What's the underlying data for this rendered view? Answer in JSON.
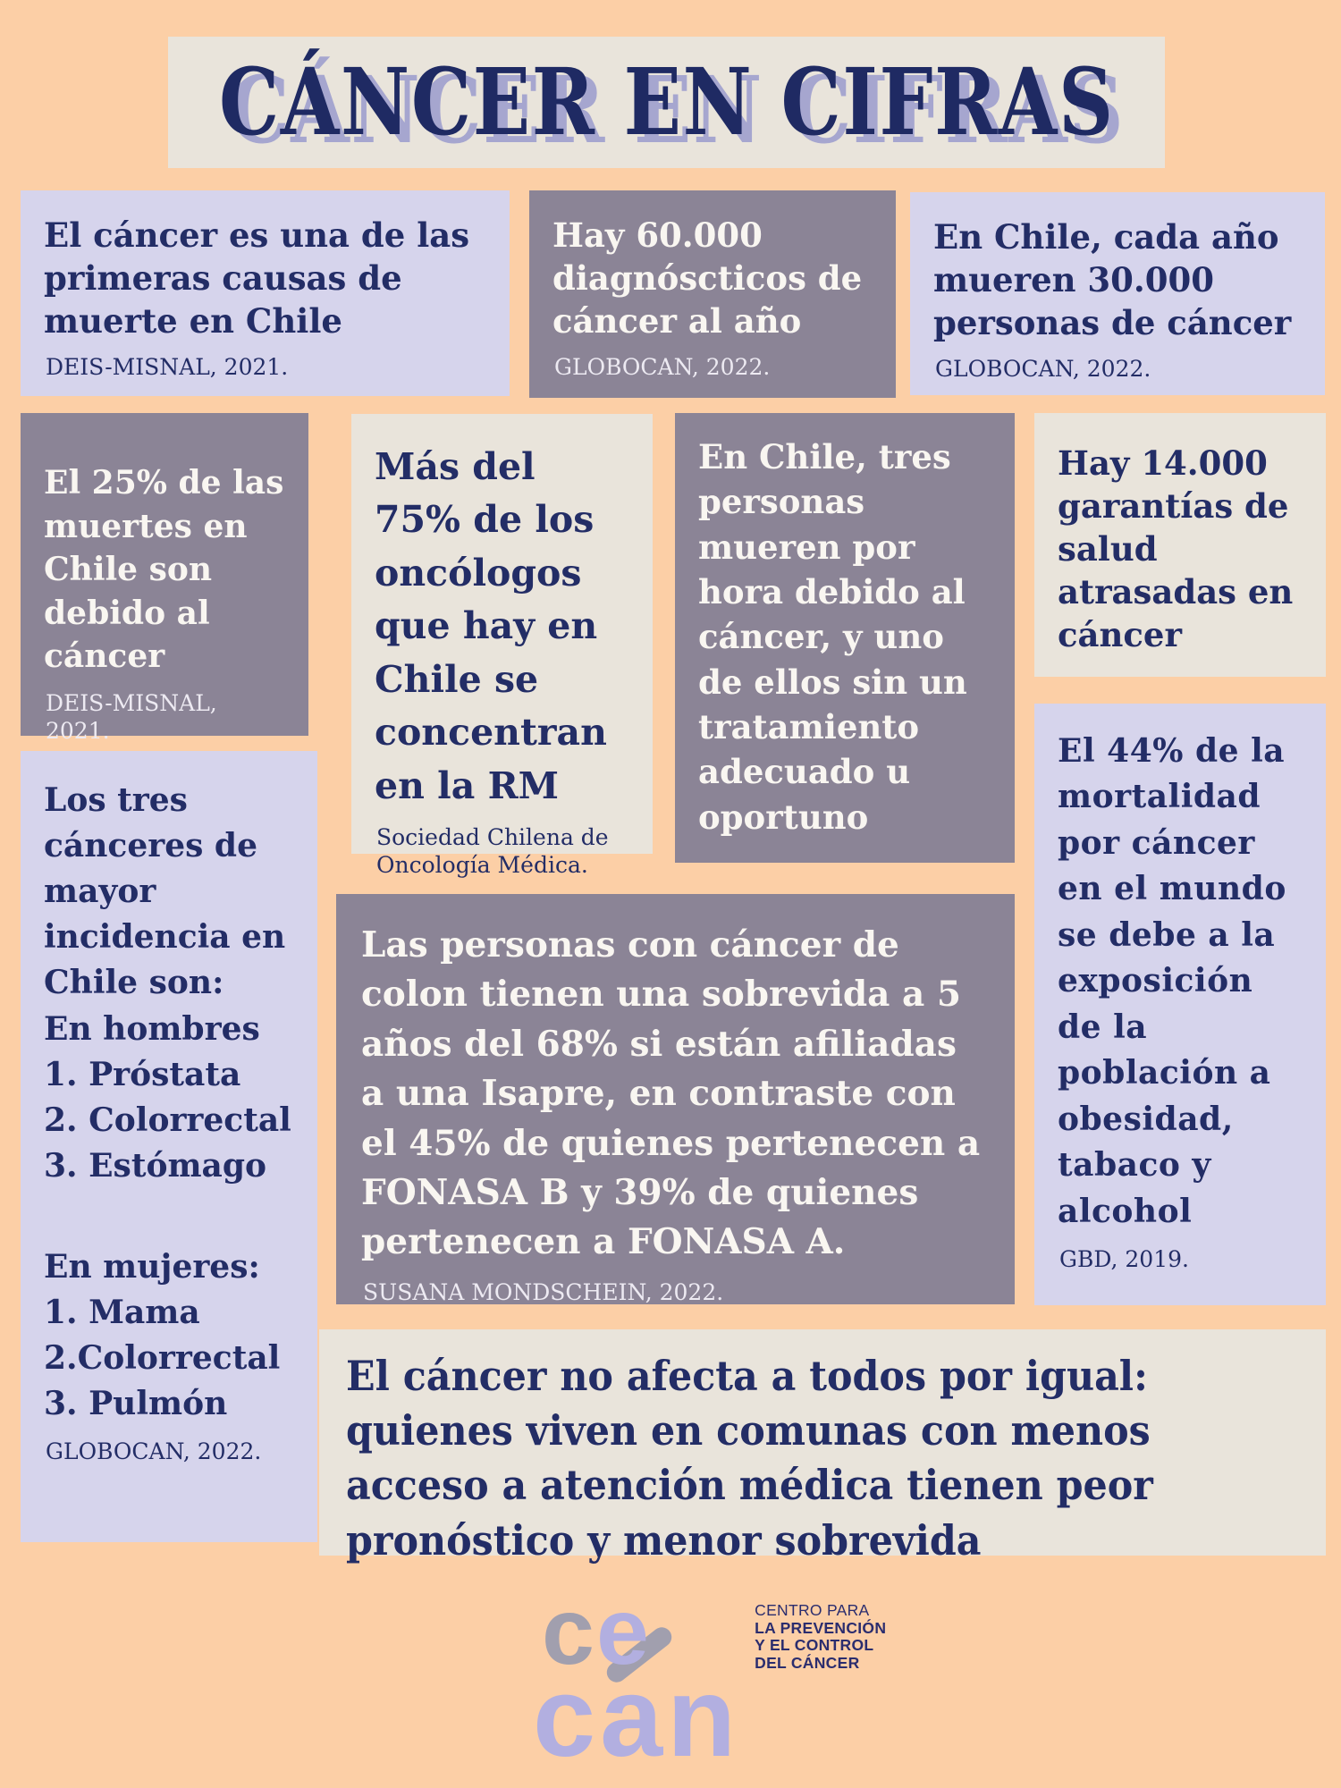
{
  "title": "CÁNCER EN CIFRAS",
  "cards": [
    {
      "name": "first-cause-of-death",
      "text": "El cáncer es una de las primeras causas de muerte en Chile",
      "source": "DEIS-MISNAL, 2021."
    },
    {
      "name": "annual-diagnoses",
      "text": "Hay 60.000 diagnóscticos de cáncer al año",
      "source": "GLOBOCAN, 2022."
    },
    {
      "name": "annual-deaths",
      "text": "En Chile, cada año mueren 30.000 personas de cáncer",
      "source": "GLOBOCAN, 2022."
    },
    {
      "name": "quarter-of-deaths",
      "text": "El 25% de las muertes en Chile son debido al cáncer",
      "source": "DEIS-MISNAL, 2021."
    },
    {
      "name": "oncologists-concentration",
      "text": "Más del 75% de los oncólogos que hay en Chile se concentran en la RM",
      "source": "Sociedad Chilena de Oncología Médica."
    },
    {
      "name": "deaths-per-hour",
      "text": "En Chile, tres personas mueren por hora debido al cáncer, y uno de ellos sin un tratamiento adecuado u oportuno",
      "source": ""
    },
    {
      "name": "delayed-health-guarantees",
      "text": "Hay 14.000 garantías de salud atrasadas en cáncer",
      "source": ""
    },
    {
      "name": "mortality-risk-factors",
      "text": "El 44% de la mortalidad por cáncer en el mundo se debe a la exposición de la población a obesidad, tabaco y alcohol",
      "source": "GBD, 2019."
    },
    {
      "name": "top-incidence-cancers",
      "heading": "Los tres cánceres de mayor incidencia en Chile son:",
      "groups": [
        {
          "label": "En hombres",
          "items": [
            "1. Próstata",
            "2. Colorrectal",
            "3. Estómago"
          ]
        },
        {
          "label": "En mujeres:",
          "items": [
            "1. Mama",
            "2.Colorrectal",
            "3. Pulmón"
          ]
        }
      ],
      "source": "GLOBOCAN, 2022."
    },
    {
      "name": "colon-cancer-survival",
      "text": "Las personas con cáncer de colon tienen una sobrevida a 5 años del 68% si están afiliadas a una Isapre, en contraste con el 45% de quienes pertenecen a FONASA B y 39% de quienes pertenecen a FONASA A.",
      "source": "SUSANA MONDSCHEIN, 2022."
    },
    {
      "name": "inequality-of-access",
      "text": "El cáncer no afecta a todos por igual: quienes viven en comunas con menos acceso a atención médica tienen peor pronóstico y menor sobrevida",
      "source": ""
    }
  ],
  "logo": {
    "mark_c": "c",
    "mark_e": "e",
    "mark_bottom": "can",
    "org_lines": [
      "CENTRO PARA",
      "LA PREVENCIÓN",
      "Y EL CONTROL",
      "DEL CÁNCER"
    ]
  },
  "colors": {
    "background": "#fccfa6",
    "banner": "#e9e4db",
    "lavender_card": "#d6d4ec",
    "mauve_card": "#8b8496",
    "cream_card": "#e9e4db",
    "navy_text": "#232d66",
    "light_text": "#f9f6f1",
    "title_shadow": "#a6a6cf",
    "logo_purple": "#b2afe0",
    "logo_silver": "#a19fae"
  }
}
